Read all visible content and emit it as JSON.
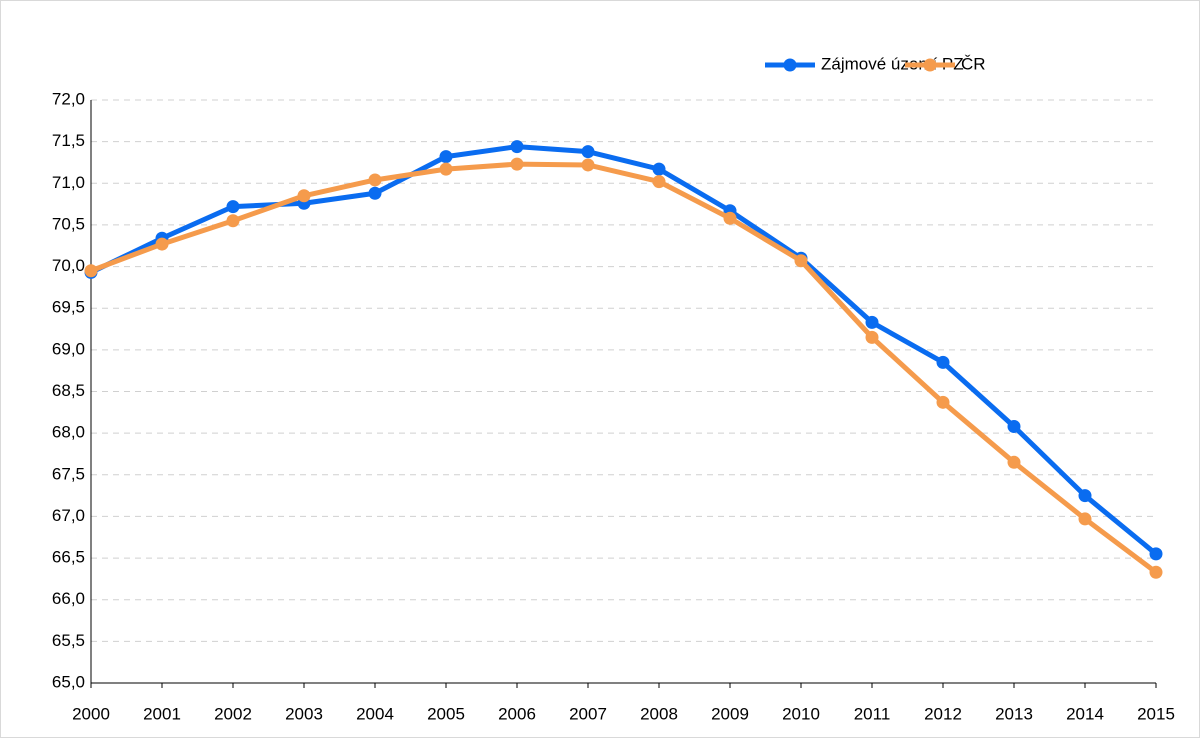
{
  "chart_data": {
    "type": "line",
    "categories": [
      "2000",
      "2001",
      "2002",
      "2003",
      "2004",
      "2005",
      "2006",
      "2007",
      "2008",
      "2009",
      "2010",
      "2011",
      "2012",
      "2013",
      "2014",
      "2015"
    ],
    "series": [
      {
        "name": "Zájmové území PZ",
        "color": "#0a6cf0",
        "values": [
          69.93,
          70.34,
          70.72,
          70.76,
          70.88,
          71.32,
          71.44,
          71.38,
          71.17,
          70.67,
          70.1,
          69.33,
          68.85,
          68.08,
          67.25,
          66.55
        ]
      },
      {
        "name": "ČR",
        "color": "#f59b4c",
        "values": [
          69.95,
          70.27,
          70.55,
          70.85,
          71.04,
          71.17,
          71.23,
          71.22,
          71.02,
          70.58,
          70.07,
          69.15,
          68.37,
          67.65,
          66.97,
          66.33
        ]
      }
    ],
    "ylim": [
      65,
      72
    ],
    "yticks": [
      {
        "value": 65,
        "label": "65,0"
      },
      {
        "value": 65.5,
        "label": "65,5"
      },
      {
        "value": 66,
        "label": "66,0"
      },
      {
        "value": 66.5,
        "label": "66,5"
      },
      {
        "value": 67,
        "label": "67,0"
      },
      {
        "value": 67.5,
        "label": "67,5"
      },
      {
        "value": 68,
        "label": "68,0"
      },
      {
        "value": 68.5,
        "label": "68,5"
      },
      {
        "value": 69,
        "label": "69,0"
      },
      {
        "value": 69.5,
        "label": "69,5"
      },
      {
        "value": 70,
        "label": "70,0"
      },
      {
        "value": 70.5,
        "label": "70,5"
      },
      {
        "value": 71,
        "label": "71,0"
      },
      {
        "value": 71.5,
        "label": "71,5"
      },
      {
        "value": 72,
        "label": "72,0"
      }
    ],
    "grid": true,
    "legend": "top-right"
  }
}
